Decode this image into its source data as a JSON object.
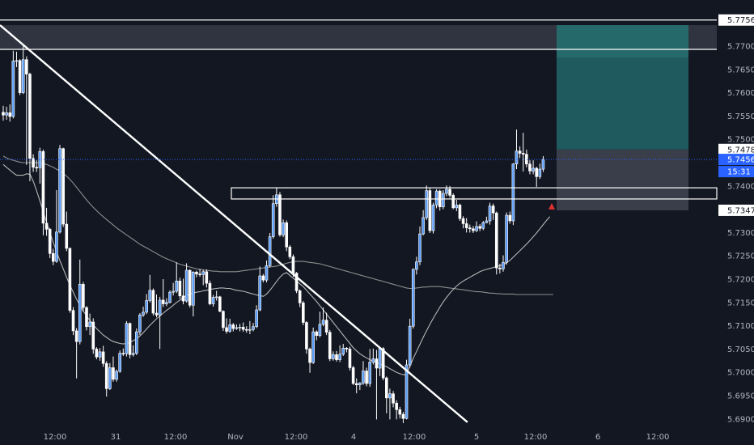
{
  "chart_data": {
    "type": "candlestick",
    "y_ticks": [
      "5.77000",
      "5.76500",
      "5.76000",
      "5.75500",
      "5.75000",
      "5.74000",
      "5.73000",
      "5.72500",
      "5.72000",
      "5.71500",
      "5.71000",
      "5.70500",
      "5.70000",
      "5.69500",
      "5.69000"
    ],
    "x_ticks": [
      "12:00",
      "31",
      "12:00",
      "Nov",
      "12:00",
      "4",
      "12:00",
      "5",
      "12:00",
      "6",
      "12:00"
    ],
    "ylim": [
      5.6885,
      5.7785
    ],
    "price_tags": {
      "top_level": "5.77560",
      "target_edge": "5.74782",
      "last_price": "5.74568",
      "countdown": "15:31",
      "stop_level": "5.73477"
    },
    "levels": {
      "top_line": 5.7756,
      "upper_zone": [
        5.7693,
        5.7745
      ],
      "lower_zone_top": 5.7396,
      "lower_zone_bottom": 5.7372,
      "last_price": 5.74568
    },
    "position": {
      "entry": 5.74782,
      "target": 5.7745,
      "stop": 5.73477
    },
    "trendline": {
      "from": [
        0,
        5.7745
      ],
      "to": [
        132,
        5.6893
      ]
    },
    "candles": [
      [
        5.7558,
        5.7552,
        5.7572,
        5.754
      ],
      [
        5.7552,
        5.7557,
        5.757,
        5.7542
      ],
      [
        5.7557,
        5.7549,
        5.7575,
        5.7538
      ],
      [
        5.7549,
        5.7668,
        5.769,
        5.7545
      ],
      [
        5.7668,
        5.7669,
        5.7688,
        5.7655
      ],
      [
        5.7669,
        5.76,
        5.7672,
        5.7595
      ],
      [
        5.76,
        5.7671,
        5.7703,
        5.7597
      ],
      [
        5.7671,
        5.764,
        5.7678,
        5.7445
      ],
      [
        5.764,
        5.7459,
        5.7643,
        5.741
      ],
      [
        5.7459,
        5.744,
        5.7468,
        5.743
      ],
      [
        5.744,
        5.7439,
        5.7455,
        5.743
      ],
      [
        5.7439,
        5.7474,
        5.7482,
        5.7405
      ],
      [
        5.7474,
        5.732,
        5.7478,
        5.7294
      ],
      [
        5.732,
        5.7307,
        5.7353,
        5.7293
      ],
      [
        5.7307,
        5.7255,
        5.731,
        5.7245
      ],
      [
        5.7255,
        5.7238,
        5.7265,
        5.723
      ],
      [
        5.7238,
        5.7301,
        5.7391,
        5.7235
      ],
      [
        5.7301,
        5.748,
        5.7488,
        5.7298
      ],
      [
        5.748,
        5.7318,
        5.7482,
        5.7312
      ],
      [
        5.7318,
        5.7266,
        5.7345,
        5.726
      ],
      [
        5.7266,
        5.7133,
        5.7268,
        5.7128
      ],
      [
        5.7133,
        5.7089,
        5.714,
        5.708
      ],
      [
        5.7089,
        5.7066,
        5.7095,
        5.6987
      ],
      [
        5.7066,
        5.7189,
        5.7242,
        5.706
      ],
      [
        5.7189,
        5.7139,
        5.7194,
        5.713
      ],
      [
        5.7139,
        5.7098,
        5.7142,
        5.709
      ],
      [
        5.7098,
        5.7108,
        5.7126,
        5.708
      ],
      [
        5.7108,
        5.705,
        5.7116,
        5.704
      ],
      [
        5.705,
        5.7033,
        5.7054,
        5.7028
      ],
      [
        5.7033,
        5.7044,
        5.7052,
        5.7025
      ],
      [
        5.7044,
        5.7019,
        5.7057,
        5.7012
      ],
      [
        5.7019,
        5.6965,
        5.7024,
        5.6948
      ],
      [
        5.6965,
        5.701,
        5.702,
        5.6962
      ],
      [
        5.701,
        5.6985,
        5.7034,
        5.698
      ],
      [
        5.6985,
        5.7002,
        5.7006,
        5.698
      ],
      [
        5.7002,
        5.7041,
        5.7047,
        5.6999
      ],
      [
        5.7041,
        5.704,
        5.7051,
        5.7035
      ],
      [
        5.704,
        5.7105,
        5.711,
        5.7034
      ],
      [
        5.7105,
        5.7038,
        5.7107,
        5.703
      ],
      [
        5.7038,
        5.7041,
        5.7058,
        5.7034
      ],
      [
        5.7041,
        5.7087,
        5.7094,
        5.7037
      ],
      [
        5.7087,
        5.7123,
        5.7127,
        5.708
      ],
      [
        5.7123,
        5.7129,
        5.7141,
        5.7119
      ],
      [
        5.7129,
        5.7154,
        5.7168,
        5.7125
      ],
      [
        5.7154,
        5.7176,
        5.7209,
        5.715
      ],
      [
        5.7176,
        5.7127,
        5.718,
        5.7122
      ],
      [
        5.7127,
        5.7123,
        5.7167,
        5.7118
      ],
      [
        5.7123,
        5.7155,
        5.7162,
        5.705
      ],
      [
        5.7155,
        5.7147,
        5.72,
        5.714
      ],
      [
        5.7147,
        5.715,
        5.7159,
        5.7142
      ],
      [
        5.715,
        5.7172,
        5.7176,
        5.7148
      ],
      [
        5.7172,
        5.7174,
        5.7192,
        5.7165
      ],
      [
        5.7174,
        5.7196,
        5.7236,
        5.717
      ],
      [
        5.7196,
        5.7164,
        5.7203,
        5.7158
      ],
      [
        5.7164,
        5.7153,
        5.7201,
        5.7146
      ],
      [
        5.7153,
        5.7219,
        5.7234,
        5.715
      ],
      [
        5.7219,
        5.7144,
        5.7221,
        5.7139
      ],
      [
        5.7144,
        5.7215,
        5.7217,
        5.712
      ],
      [
        5.7215,
        5.7211,
        5.7218,
        5.7204
      ],
      [
        5.7211,
        5.721,
        5.7222,
        5.7205
      ],
      [
        5.721,
        5.7216,
        5.722,
        5.7187
      ],
      [
        5.7216,
        5.7191,
        5.7221,
        5.7182
      ],
      [
        5.7191,
        5.7147,
        5.7197,
        5.7144
      ],
      [
        5.7147,
        5.7161,
        5.7166,
        5.7141
      ],
      [
        5.7161,
        5.7162,
        5.7175,
        5.7154
      ],
      [
        5.7162,
        5.7131,
        5.7164,
        5.7129
      ],
      [
        5.7131,
        5.7096,
        5.7133,
        5.7089
      ],
      [
        5.7096,
        5.7088,
        5.7116,
        5.7083
      ],
      [
        5.7088,
        5.7102,
        5.7115,
        5.7085
      ],
      [
        5.7102,
        5.7094,
        5.7106,
        5.7088
      ],
      [
        5.7094,
        5.7096,
        5.7103,
        5.7091
      ],
      [
        5.7096,
        5.7097,
        5.7104,
        5.7088
      ],
      [
        5.7097,
        5.7092,
        5.7107,
        5.7087
      ],
      [
        5.7092,
        5.7091,
        5.7099,
        5.7085
      ],
      [
        5.7091,
        5.7092,
        5.711,
        5.7082
      ],
      [
        5.7092,
        5.7098,
        5.7106,
        5.7088
      ],
      [
        5.7098,
        5.7134,
        5.7144,
        5.7095
      ],
      [
        5.7134,
        5.7207,
        5.7227,
        5.7131
      ],
      [
        5.7207,
        5.7198,
        5.7211,
        5.7193
      ],
      [
        5.7198,
        5.7229,
        5.724,
        5.7193
      ],
      [
        5.7229,
        5.7291,
        5.7299,
        5.7225
      ],
      [
        5.7291,
        5.7362,
        5.738,
        5.7287
      ],
      [
        5.7362,
        5.7381,
        5.7397,
        5.7355
      ],
      [
        5.7381,
        5.7295,
        5.7387,
        5.7291
      ],
      [
        5.7295,
        5.7321,
        5.7328,
        5.729
      ],
      [
        5.7321,
        5.7269,
        5.7326,
        5.726
      ],
      [
        5.7269,
        5.7248,
        5.7273,
        5.7243
      ],
      [
        5.7248,
        5.7213,
        5.7253,
        5.7205
      ],
      [
        5.7213,
        5.7175,
        5.7215,
        5.717
      ],
      [
        5.7175,
        5.7149,
        5.7178,
        5.714
      ],
      [
        5.7149,
        5.7107,
        5.7153,
        5.7101
      ],
      [
        5.7107,
        5.705,
        5.711,
        5.704
      ],
      [
        5.705,
        5.7021,
        5.7053,
        5.6999
      ],
      [
        5.7021,
        5.7087,
        5.7096,
        5.7018
      ],
      [
        5.7087,
        5.7079,
        5.709,
        5.7069
      ],
      [
        5.7079,
        5.7103,
        5.713,
        5.7075
      ],
      [
        5.7103,
        5.7112,
        5.7139,
        5.7099
      ],
      [
        5.7112,
        5.7086,
        5.7128,
        5.708
      ],
      [
        5.7086,
        5.7029,
        5.7091,
        5.7024
      ],
      [
        5.7029,
        5.7038,
        5.7045,
        5.7025
      ],
      [
        5.7038,
        5.7027,
        5.7046,
        5.7023
      ],
      [
        5.7027,
        5.7039,
        5.7058,
        5.7022
      ],
      [
        5.7039,
        5.7052,
        5.7061,
        5.7035
      ],
      [
        5.7052,
        5.705,
        5.7054,
        5.7043
      ],
      [
        5.705,
        5.701,
        5.7055,
        5.7004
      ],
      [
        5.701,
        5.6976,
        5.7014,
        5.6973
      ],
      [
        5.6976,
        5.6973,
        5.6987,
        5.6955
      ],
      [
        5.6973,
        5.6977,
        5.6979,
        5.6962
      ],
      [
        5.6977,
        5.7003,
        5.7024,
        5.6973
      ],
      [
        5.7003,
        5.6976,
        5.701,
        5.697
      ],
      [
        5.6976,
        5.7022,
        5.705,
        5.6969
      ],
      [
        5.7022,
        5.7029,
        5.7051,
        5.7017
      ],
      [
        5.7029,
        5.7009,
        5.7048,
        5.6899
      ],
      [
        5.7009,
        5.7051,
        5.7054,
        5.6992
      ],
      [
        5.7051,
        5.6988,
        5.7054,
        5.6983
      ],
      [
        5.6988,
        5.6945,
        5.6991,
        5.6912
      ],
      [
        5.6945,
        5.6954,
        5.6965,
        5.6899
      ],
      [
        5.6954,
        5.6934,
        5.696,
        5.6925
      ],
      [
        5.6934,
        5.692,
        5.694,
        5.6899
      ],
      [
        5.692,
        5.691,
        5.6926,
        5.6901
      ],
      [
        5.691,
        5.6901,
        5.6915,
        5.6891
      ],
      [
        5.6901,
        5.7016,
        5.7027,
        5.6899
      ],
      [
        5.7016,
        5.7099,
        5.7115,
        5.701
      ],
      [
        5.7099,
        5.7221,
        5.7223,
        5.7094
      ],
      [
        5.7221,
        5.7237,
        5.7248,
        5.721
      ],
      [
        5.7237,
        5.7297,
        5.7313,
        5.723
      ],
      [
        5.7297,
        5.7332,
        5.7348,
        5.7294
      ],
      [
        5.7332,
        5.739,
        5.7401,
        5.7327
      ],
      [
        5.739,
        5.7304,
        5.7395,
        5.7299
      ],
      [
        5.7304,
        5.7359,
        5.7364,
        5.7298
      ],
      [
        5.7359,
        5.7389,
        5.7393,
        5.7352
      ],
      [
        5.7389,
        5.7355,
        5.7392,
        5.7347
      ],
      [
        5.7355,
        5.7384,
        5.7391,
        5.735
      ],
      [
        5.7384,
        5.7393,
        5.7401,
        5.7378
      ],
      [
        5.7393,
        5.738,
        5.74,
        5.7375
      ],
      [
        5.738,
        5.7353,
        5.7384,
        5.735
      ],
      [
        5.7353,
        5.7359,
        5.737,
        5.7346
      ],
      [
        5.7359,
        5.733,
        5.7362,
        5.7325
      ],
      [
        5.733,
        5.7319,
        5.7335,
        5.7309
      ],
      [
        5.7319,
        5.731,
        5.7331,
        5.73
      ],
      [
        5.731,
        5.7308,
        5.7317,
        5.73
      ],
      [
        5.7308,
        5.7304,
        5.7314,
        5.7299
      ],
      [
        5.7304,
        5.7313,
        5.7324,
        5.7301
      ],
      [
        5.7313,
        5.7309,
        5.7318,
        5.7303
      ],
      [
        5.7309,
        5.7321,
        5.7325,
        5.7305
      ],
      [
        5.7321,
        5.7325,
        5.7334,
        5.732
      ],
      [
        5.7325,
        5.7357,
        5.7364,
        5.7317
      ],
      [
        5.7357,
        5.7342,
        5.7362,
        5.7327
      ],
      [
        5.7342,
        5.7224,
        5.7345,
        5.721
      ],
      [
        5.7224,
        5.7222,
        5.7233,
        5.7212
      ],
      [
        5.7222,
        5.7236,
        5.7251,
        5.7216
      ],
      [
        5.7236,
        5.7337,
        5.7343,
        5.7231
      ],
      [
        5.7337,
        5.7325,
        5.7345,
        5.7319
      ],
      [
        5.7325,
        5.7447,
        5.7449,
        5.7316
      ],
      [
        5.7447,
        5.7475,
        5.7521,
        5.7436
      ],
      [
        5.7475,
        5.747,
        5.7485,
        5.746
      ],
      [
        5.747,
        5.7468,
        5.7514,
        5.7431
      ],
      [
        5.7468,
        5.7447,
        5.7478,
        5.744
      ],
      [
        5.7447,
        5.7432,
        5.7455,
        5.7425
      ],
      [
        5.7432,
        5.7438,
        5.7455,
        5.7425
      ],
      [
        5.7438,
        5.742,
        5.7441,
        5.7398
      ],
      [
        5.742,
        5.7436,
        5.7448,
        5.7415
      ],
      [
        5.7436,
        5.7457,
        5.7464,
        5.743
      ]
    ],
    "sma_fast": [
      5.7446,
      5.744,
      5.7434,
      5.7428,
      5.7423,
      5.7423,
      5.7423,
      5.7426,
      5.7425,
      5.741,
      5.739,
      5.7368,
      5.7345,
      5.7322,
      5.73,
      5.7279,
      5.7259,
      5.724,
      5.7222,
      5.7204,
      5.7187,
      5.7172,
      5.7157,
      5.7144,
      5.7132,
      5.7121,
      5.7111,
      5.7102,
      5.7094,
      5.7087,
      5.708,
      5.7075,
      5.707,
      5.7066,
      5.7064,
      5.7062,
      5.7061,
      5.7062,
      5.7064,
      5.7068,
      5.7072,
      5.7078,
      5.7085,
      5.7093,
      5.7101,
      5.7108,
      5.7115,
      5.7121,
      5.7127,
      5.7133,
      5.7138,
      5.7144,
      5.715,
      5.7155,
      5.7161,
      5.7165,
      5.7168,
      5.717,
      5.7172,
      5.7173,
      5.7175,
      5.7176,
      5.7178,
      5.7179,
      5.718,
      5.7181,
      5.7181,
      5.718,
      5.718,
      5.7178,
      5.7176,
      5.7175,
      5.7174,
      5.7172,
      5.717,
      5.7168,
      5.7166,
      5.7165,
      5.7163,
      5.7168,
      5.7176,
      5.7185,
      5.7195,
      5.7204,
      5.7211,
      5.7214,
      5.7208,
      5.7202,
      5.7196,
      5.719,
      5.7184,
      5.7176,
      5.7168,
      5.716,
      5.7152,
      5.7143,
      5.7134,
      5.7125,
      5.7116,
      5.7107,
      5.7098,
      5.7089,
      5.708,
      5.7071,
      5.7062,
      5.7053,
      5.7046,
      5.704,
      5.7035,
      5.7031,
      5.7027,
      5.7024,
      5.7021,
      5.7018,
      5.7015,
      5.7012,
      5.7008,
      5.7004,
      5.7,
      5.6997,
      5.6995,
      5.6995,
      5.7013,
      5.703,
      5.7045,
      5.706,
      5.7075,
      5.7089,
      5.7103,
      5.7116,
      5.7128,
      5.714,
      5.7151,
      5.7161,
      5.717,
      5.7178,
      5.7185,
      5.7191,
      5.7196,
      5.72,
      5.7204,
      5.7208,
      5.7212,
      5.7216,
      5.7219,
      5.7221,
      5.7223,
      5.7225,
      5.7227,
      5.7229,
      5.7231,
      5.7235,
      5.724,
      5.7247,
      5.7254,
      5.7261,
      5.7268,
      5.7275,
      5.7283,
      5.7291,
      5.7299,
      5.7308,
      5.7317,
      5.7326,
      5.7334
    ],
    "sma_slow": [
      5.7464,
      5.746,
      5.7457,
      5.7455,
      5.7453,
      5.7451,
      5.745,
      5.745,
      5.745,
      5.745,
      5.745,
      5.7449,
      5.7448,
      5.7446,
      5.7443,
      5.744,
      5.7436,
      5.7432,
      5.7427,
      5.7421,
      5.7414,
      5.7406,
      5.7397,
      5.7388,
      5.7379,
      5.737,
      5.7362,
      5.7354,
      5.7347,
      5.734,
      5.7334,
      5.7328,
      5.7322,
      5.7316,
      5.731,
      5.7305,
      5.73,
      5.7295,
      5.729,
      5.7285,
      5.728,
      5.7275,
      5.7271,
      5.7267,
      5.7263,
      5.7259,
      5.7255,
      5.7251,
      5.7247,
      5.7244,
      5.7241,
      5.7238,
      5.7235,
      5.7232,
      5.723,
      5.7228,
      5.7226,
      5.7224,
      5.7222,
      5.7221,
      5.722,
      5.7219,
      5.7218,
      5.7217,
      5.7217,
      5.7216,
      5.7216,
      5.7216,
      5.7216,
      5.7216,
      5.7216,
      5.7217,
      5.7218,
      5.7219,
      5.722,
      5.7221,
      5.7222,
      5.7223,
      5.7224,
      5.7225,
      5.7226,
      5.7227,
      5.7228,
      5.723,
      5.7232,
      5.7234,
      5.7236,
      5.7237,
      5.7238,
      5.7238,
      5.7238,
      5.7237,
      5.7236,
      5.7235,
      5.7234,
      5.7233,
      5.7231,
      5.7229,
      5.7227,
      5.7225,
      5.7223,
      5.7221,
      5.7219,
      5.7217,
      5.7215,
      5.7213,
      5.7211,
      5.7209,
      5.7207,
      5.7205,
      5.7203,
      5.7201,
      5.7199,
      5.7197,
      5.7195,
      5.7193,
      5.7191,
      5.7189,
      5.7187,
      5.7185,
      5.7183,
      5.7181,
      5.718,
      5.718,
      5.7181,
      5.7182,
      5.7183,
      5.7183,
      5.7184,
      5.7184,
      5.7184,
      5.7184,
      5.7183,
      5.7182,
      5.7181,
      5.718,
      5.7179,
      5.7178,
      5.7177,
      5.7176,
      5.7175,
      5.7174,
      5.7173,
      5.7173,
      5.7172,
      5.7171,
      5.717,
      5.717,
      5.7169,
      5.7169,
      5.7168,
      5.7168,
      5.7168,
      5.7168,
      5.7167,
      5.7167,
      5.7167,
      5.7167,
      5.7167,
      5.7167,
      5.7167,
      5.7167,
      5.7167,
      5.7167,
      5.7167,
      5.7167
    ],
    "colors": {
      "background": "#131722",
      "candle": "#ffffff",
      "candle_body_alt": "#5b9cf6",
      "axis_text": "#b2b5be",
      "level_line": "#ffffff",
      "zone_fill": "#363a45",
      "target_fill": "#1e5a5e",
      "target_fill_top": "#2b7374",
      "stop_fill": "#3a3e4a",
      "last_price": "#2962ff",
      "ma_fast": "#c8c8c8",
      "ma_slow": "#9a9a9a",
      "tag_bg": "#2a2e39",
      "marker": "#e0312f"
    }
  }
}
